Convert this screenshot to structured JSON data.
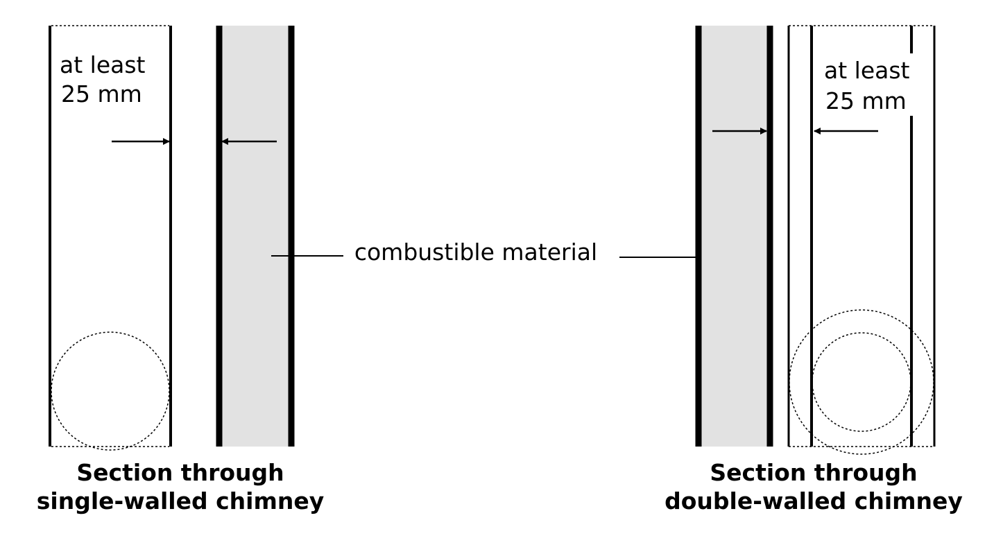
{
  "colors": {
    "background": "#ffffff",
    "stroke": "#000000",
    "combustible_fill": "#e2e2e2"
  },
  "labels": {
    "clearance_left_line1": "at least",
    "clearance_left_line2": "25 mm",
    "clearance_right_line1": "at least",
    "clearance_right_line2": "25 mm",
    "combustible": "combustible material",
    "caption_left_line1": "Section through",
    "caption_left_line2": "single-walled chimney",
    "caption_right_line1": "Section through",
    "caption_right_line2": "double-walled chimney"
  }
}
